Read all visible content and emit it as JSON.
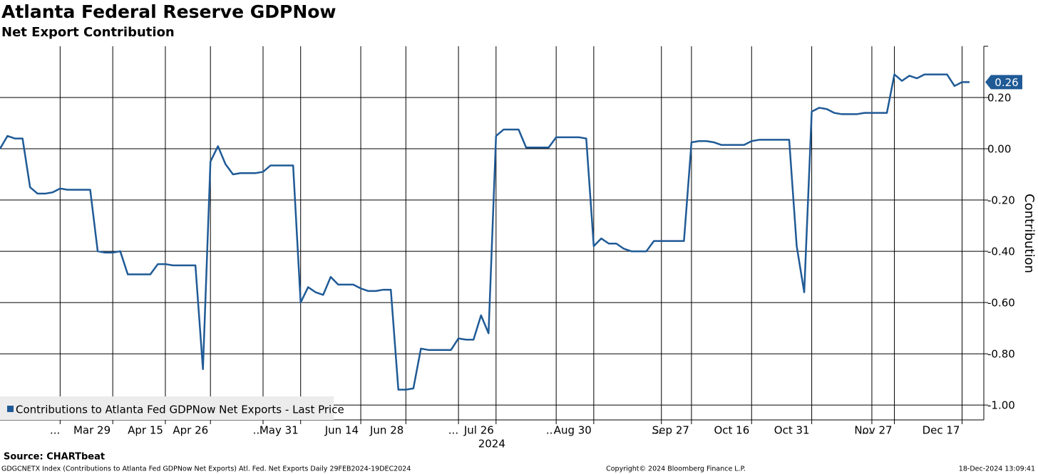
{
  "chart_data": {
    "type": "line",
    "title": "Atlanta Federal Reserve GDPNow",
    "subtitle": "Net Export Contribution",
    "y_label": "Contribution",
    "year_label": "2024",
    "categories": [
      null,
      null,
      null,
      null,
      null,
      null,
      null,
      null,
      "...",
      null,
      null,
      null,
      null,
      null,
      null,
      "Mar 29",
      null,
      null,
      null,
      null,
      null,
      null,
      "Apr 15",
      null,
      null,
      null,
      null,
      null,
      "Apr 26",
      null,
      null,
      null,
      null,
      null,
      null,
      "...",
      null,
      null,
      null,
      null,
      "May 31",
      null,
      null,
      null,
      null,
      null,
      null,
      null,
      "Jun 14",
      null,
      null,
      null,
      null,
      null,
      "Jun 28",
      null,
      null,
      null,
      null,
      null,
      null,
      "...",
      null,
      null,
      null,
      null,
      "Jul 26",
      null,
      null,
      null,
      null,
      null,
      null,
      null,
      "...",
      null,
      null,
      null,
      null,
      "Aug 30",
      null,
      null,
      null,
      null,
      null,
      null,
      null,
      null,
      "...",
      null,
      null,
      null,
      "Sep 27",
      null,
      null,
      null,
      null,
      null,
      null,
      null,
      "Oct 16",
      null,
      null,
      null,
      null,
      null,
      null,
      null,
      "Oct 31",
      null,
      null,
      null,
      null,
      null,
      null,
      null,
      "...",
      null,
      null,
      "Nov 27",
      null,
      null,
      null,
      null,
      null,
      null,
      null,
      null,
      "Dec 17",
      null
    ],
    "series": [
      {
        "name": "Contributions to Atlanta Fed GDPNow Net Exports - Last Price",
        "color": "#1f5a96",
        "values": [
          0.0,
          0.05,
          0.04,
          0.04,
          -0.15,
          -0.175,
          -0.175,
          -0.17,
          -0.155,
          -0.16,
          -0.16,
          -0.16,
          -0.16,
          -0.4,
          -0.405,
          -0.405,
          -0.4,
          -0.49,
          -0.49,
          -0.49,
          -0.49,
          -0.45,
          -0.45,
          -0.455,
          -0.455,
          -0.455,
          -0.455,
          -0.86,
          -0.05,
          0.01,
          -0.06,
          -0.1,
          -0.095,
          -0.095,
          -0.095,
          -0.09,
          -0.065,
          -0.065,
          -0.065,
          -0.065,
          -0.6,
          -0.54,
          -0.56,
          -0.57,
          -0.5,
          -0.53,
          -0.53,
          -0.53,
          -0.545,
          -0.555,
          -0.555,
          -0.55,
          -0.55,
          -0.94,
          -0.94,
          -0.935,
          -0.78,
          -0.785,
          -0.785,
          -0.785,
          -0.785,
          -0.74,
          -0.745,
          -0.745,
          -0.65,
          -0.72,
          0.05,
          0.075,
          0.075,
          0.075,
          0.005,
          0.005,
          0.005,
          0.005,
          0.045,
          0.045,
          0.045,
          0.045,
          0.04,
          -0.38,
          -0.35,
          -0.37,
          -0.37,
          -0.39,
          -0.4,
          -0.4,
          -0.4,
          -0.36,
          -0.36,
          -0.36,
          -0.36,
          -0.36,
          0.025,
          0.03,
          0.03,
          0.025,
          0.015,
          0.015,
          0.015,
          0.015,
          0.03,
          0.035,
          0.035,
          0.035,
          0.035,
          0.035,
          -0.38,
          -0.56,
          0.145,
          0.16,
          0.155,
          0.14,
          0.135,
          0.135,
          0.135,
          0.14,
          0.14,
          0.14,
          0.14,
          0.29,
          0.265,
          0.285,
          0.275,
          0.29,
          0.29,
          0.29,
          0.29,
          0.245,
          0.26,
          0.26
        ]
      }
    ],
    "ylim": [
      -1.058,
      0.4
    ],
    "yticks": [
      {
        "value": -1,
        "label": "-1.00"
      },
      {
        "value": -0.8,
        "label": "-0.80"
      },
      {
        "value": -0.6,
        "label": "-0.60"
      },
      {
        "value": -0.4,
        "label": "-0.40"
      },
      {
        "value": -0.2,
        "label": "-0.20"
      },
      {
        "value": 0,
        "label": "0.00"
      },
      {
        "value": 0.2,
        "label": "0.20"
      }
    ],
    "grid": true
  },
  "footer": {
    "source": "Source: CHARTbeat",
    "description": "GDGCNETX Index (Contributions to Atlanta Fed GDPNow Net Exports) Atl. Fed. Net Exports  Daily 29FEB2024-19DEC2024",
    "copyright": "Copyright© 2024 Bloomberg Finance L.P.",
    "timestamp": "18-Dec-2024 13:09:41"
  }
}
